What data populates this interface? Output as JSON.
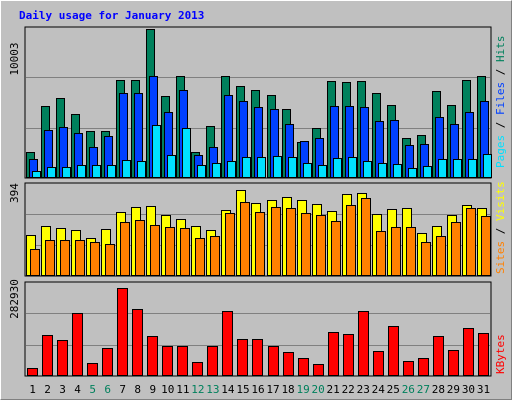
{
  "title": "Daily usage for January 2013",
  "colors": {
    "background": "#c0c0c0",
    "title": "#0000ff",
    "hits": "#00805c",
    "files": "#0040ff",
    "pages": "#00e0ff",
    "visits": "#ffff00",
    "sites": "#ff8000",
    "kbytes": "#ff0000",
    "weekend_label": "#00805c",
    "weekday_label": "#000000"
  },
  "axes": {
    "top_max_label": "10003",
    "mid_max_label": "394",
    "bottom_max_label": "282930"
  },
  "legend": {
    "pages": "Pages",
    "files": "Files",
    "hits": "Hits",
    "sites": "Sites",
    "visits": "Visits",
    "kbytes": "KBytes",
    "separator": " / "
  },
  "chart_data": [
    {
      "type": "bar",
      "panel": "requests",
      "categories": [
        "1",
        "2",
        "3",
        "4",
        "5",
        "6",
        "7",
        "8",
        "9",
        "10",
        "11",
        "12",
        "13",
        "14",
        "15",
        "16",
        "17",
        "18",
        "19",
        "20",
        "21",
        "22",
        "23",
        "24",
        "25",
        "26",
        "27",
        "28",
        "29",
        "30",
        "31"
      ],
      "weekend_days": [
        "5",
        "6",
        "12",
        "13",
        "19",
        "20",
        "26",
        "27"
      ],
      "ylim": [
        0,
        10003
      ],
      "series": [
        {
          "name": "Hits",
          "values": [
            1730,
            4810,
            5360,
            4290,
            3160,
            3160,
            6590,
            6590,
            10003,
            5520,
            6880,
            1730,
            3510,
            6880,
            6200,
            5940,
            5560,
            4600,
            2420,
            3330,
            6540,
            6460,
            6540,
            5680,
            4890,
            2670,
            2890,
            5810,
            4890,
            6590,
            6880
          ]
        },
        {
          "name": "Files",
          "values": [
            1280,
            3210,
            3450,
            3030,
            2050,
            2800,
            5680,
            5680,
            6840,
            4460,
            5880,
            1530,
            2050,
            5580,
            5180,
            4770,
            4650,
            3640,
            2510,
            2690,
            4810,
            4810,
            4770,
            3840,
            3900,
            2210,
            2290,
            4100,
            3640,
            4420,
            5180
          ]
        },
        {
          "name": "Pages",
          "values": [
            500,
            770,
            730,
            880,
            850,
            870,
            1240,
            1110,
            3530,
            1560,
            3350,
            870,
            1020,
            1160,
            1410,
            1380,
            1450,
            1410,
            980,
            860,
            1320,
            1410,
            1110,
            1020,
            930,
            660,
            810,
            1280,
            1280,
            1270,
            1580
          ]
        }
      ]
    },
    {
      "type": "bar",
      "panel": "visits",
      "categories": [
        "1",
        "2",
        "3",
        "4",
        "5",
        "6",
        "7",
        "8",
        "9",
        "10",
        "11",
        "12",
        "13",
        "14",
        "15",
        "16",
        "17",
        "18",
        "19",
        "20",
        "21",
        "22",
        "23",
        "24",
        "25",
        "26",
        "27",
        "28",
        "29",
        "30",
        "31"
      ],
      "ylim": [
        0,
        394
      ],
      "series": [
        {
          "name": "Visits",
          "values": [
            178,
            218,
            208,
            198,
            164,
            203,
            277,
            297,
            305,
            262,
            247,
            218,
            198,
            287,
            374,
            318,
            329,
            342,
            331,
            312,
            281,
            356,
            359,
            267,
            289,
            293,
            186,
            215,
            265,
            308,
            294
          ]
        },
        {
          "name": "Sites",
          "values": [
            117,
            158,
            155,
            154,
            146,
            138,
            234,
            242,
            222,
            212,
            206,
            163,
            175,
            271,
            320,
            276,
            297,
            295,
            274,
            264,
            238,
            308,
            339,
            196,
            212,
            211,
            149,
            174,
            233,
            293,
            258
          ]
        }
      ]
    },
    {
      "type": "bar",
      "panel": "kbytes",
      "categories": [
        "1",
        "2",
        "3",
        "4",
        "5",
        "6",
        "7",
        "8",
        "9",
        "10",
        "11",
        "12",
        "13",
        "14",
        "15",
        "16",
        "17",
        "18",
        "19",
        "20",
        "21",
        "22",
        "23",
        "24",
        "25",
        "26",
        "27",
        "28",
        "29",
        "30",
        "31"
      ],
      "ylim": [
        0,
        282930
      ],
      "series": [
        {
          "name": "KBytes",
          "values": [
            23420,
            125630,
            110000,
            195000,
            40140,
            85000,
            270980,
            205000,
            122000,
            93000,
            93000,
            44000,
            92000,
            201000,
            115000,
            115000,
            93000,
            75000,
            56000,
            37000,
            136000,
            128000,
            200000,
            76000,
            153000,
            45000,
            56000,
            123000,
            79000,
            149000,
            132000
          ]
        }
      ]
    }
  ]
}
